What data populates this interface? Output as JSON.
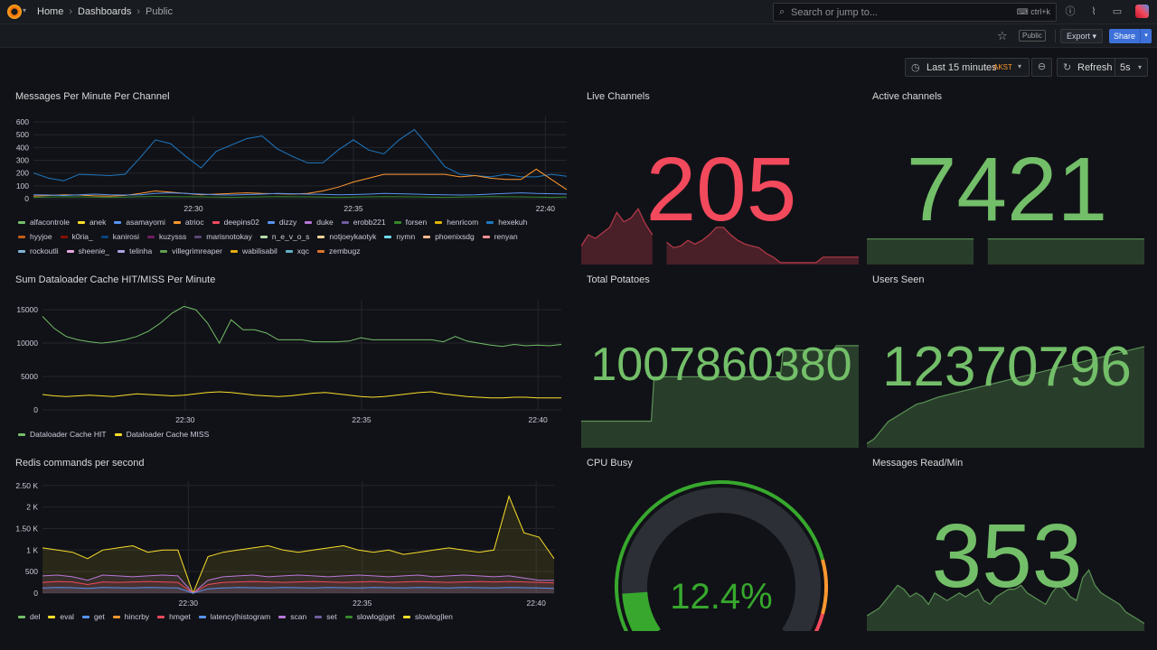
{
  "topbar": {
    "breadcrumbs": [
      "Home",
      "Dashboards",
      "Public"
    ],
    "search_placeholder": "Search or jump to...",
    "search_shortcut": "ctrl+k"
  },
  "subbar": {
    "public_badge": "Public",
    "export_label": "Export",
    "share_label": "Share"
  },
  "controls": {
    "time_range": "Last 15 minutes",
    "timezone": "AKST",
    "refresh_label": "Refresh",
    "refresh_interval": "5s"
  },
  "colors": {
    "green": "#73bf69",
    "red": "#f2495c",
    "orange": "#ff9830",
    "panel_bg": "#111217"
  },
  "panels": {
    "messages": {
      "title": "Messages Per Minute Per Channel",
      "legend": [
        {
          "name": "alfacontrole",
          "color": "#73bf69"
        },
        {
          "name": "anek",
          "color": "#fade2a"
        },
        {
          "name": "asamayomi",
          "color": "#5794f2"
        },
        {
          "name": "atrioc",
          "color": "#ff9830"
        },
        {
          "name": "deepins02",
          "color": "#f2495c"
        },
        {
          "name": "dizzy",
          "color": "#5794f2"
        },
        {
          "name": "duke",
          "color": "#b877d9"
        },
        {
          "name": "erobb221",
          "color": "#705da0"
        },
        {
          "name": "forsen",
          "color": "#37872d"
        },
        {
          "name": "henricom",
          "color": "#e0b400"
        },
        {
          "name": "hexekuh",
          "color": "#1f78c1"
        },
        {
          "name": "hyyjoe",
          "color": "#c15c17"
        },
        {
          "name": "k0ria_",
          "color": "#890f02"
        },
        {
          "name": "kanirosi",
          "color": "#0a437c"
        },
        {
          "name": "kuzysss",
          "color": "#6d1f62"
        },
        {
          "name": "marisnotokay",
          "color": "#584477"
        },
        {
          "name": "n_e_v_o_s",
          "color": "#b7dbab"
        },
        {
          "name": "notjoeykaotyk",
          "color": "#f4d598"
        },
        {
          "name": "nymn",
          "color": "#70dbed"
        },
        {
          "name": "phoenixsdg",
          "color": "#f9ba8f"
        },
        {
          "name": "renyan",
          "color": "#f29191"
        },
        {
          "name": "rockoutli",
          "color": "#82b5d8"
        },
        {
          "name": "sheenie_",
          "color": "#e5a8e2"
        },
        {
          "name": "telinha",
          "color": "#aea2e0"
        },
        {
          "name": "villegrimreaper",
          "color": "#629e51"
        },
        {
          "name": "wabilisabil",
          "color": "#e5ac0e"
        },
        {
          "name": "xqc",
          "color": "#64b0c8"
        },
        {
          "name": "zembugz",
          "color": "#e0752d"
        }
      ],
      "chart_data": {
        "type": "line",
        "y_ticks": [
          "0",
          "100",
          "200",
          "300",
          "400",
          "500",
          "600"
        ],
        "x_ticks": [
          "22:30",
          "22:35",
          "22:40"
        ],
        "ylim": [
          0,
          650
        ],
        "series": [
          {
            "name": "hexekuh",
            "values": [
              200,
              160,
              140,
              190,
              185,
              180,
              190,
              320,
              460,
              430,
              330,
              240,
              370,
              420,
              470,
              490,
              390,
              330,
              280,
              280,
              380,
              460,
              380,
              350,
              460,
              540,
              400,
              250,
              190,
              180,
              170,
              190,
              170,
              170,
              190,
              175
            ]
          },
          {
            "name": "atrioc",
            "values": [
              20,
              25,
              30,
              28,
              22,
              20,
              25,
              40,
              60,
              50,
              40,
              30,
              35,
              40,
              45,
              40,
              38,
              35,
              40,
              60,
              90,
              130,
              160,
              190,
              190,
              190,
              190,
              190,
              170,
              180,
              160,
              150,
              150,
              230,
              150,
              70
            ]
          },
          {
            "name": "asamayomi",
            "values": [
              30,
              28,
              25,
              30,
              35,
              30,
              28,
              30,
              40,
              45,
              40,
              35,
              30,
              28,
              32,
              35,
              40,
              38,
              35,
              33,
              30,
              32,
              35,
              40,
              38,
              35,
              32,
              30,
              28,
              30,
              35,
              40,
              45,
              40,
              38,
              35
            ]
          },
          {
            "name": "forsen",
            "values": [
              10,
              12,
              15,
              14,
              12,
              10,
              12,
              15,
              18,
              16,
              15,
              14,
              12,
              10,
              12,
              14,
              16,
              15,
              14,
              12,
              10,
              12,
              14,
              16,
              15,
              14,
              12,
              10,
              12,
              14,
              16,
              15,
              14,
              12,
              10,
              12
            ]
          }
        ]
      }
    },
    "live": {
      "title": "Live Channels",
      "value": "205",
      "color": "#f2495c",
      "chart_data": {
        "type": "area",
        "values": [
          50,
          80,
          70,
          85,
          100,
          140,
          115,
          125,
          150,
          110,
          80,
          0,
          60,
          45,
          50,
          65,
          55,
          65,
          80,
          100,
          100,
          80,
          65,
          55,
          50,
          45,
          30,
          20,
          5,
          5,
          5,
          5,
          5,
          5,
          20,
          20,
          20,
          20,
          20,
          20
        ]
      }
    },
    "active": {
      "title": "Active channels",
      "value": "7421",
      "color": "#73bf69",
      "chart_data": {
        "type": "area",
        "values": [
          30,
          30,
          30,
          30,
          30,
          30,
          30,
          30,
          30,
          30,
          30,
          30,
          30,
          30,
          30,
          30,
          0,
          30,
          30,
          30,
          30,
          30,
          30,
          30,
          30,
          30,
          30,
          30,
          30,
          30,
          30,
          30,
          30,
          30,
          30,
          30,
          30,
          30,
          30,
          30
        ]
      }
    },
    "dataloader": {
      "title": "Sum Dataloader Cache HIT/MISS Per Minute",
      "legend": [
        {
          "name": "Dataloader Cache HIT",
          "color": "#73bf69"
        },
        {
          "name": "Dataloader Cache MISS",
          "color": "#fade2a"
        }
      ],
      "chart_data": {
        "type": "line",
        "y_ticks": [
          "0",
          "5000",
          "10000",
          "15000"
        ],
        "x_ticks": [
          "22:30",
          "22:35",
          "22:40"
        ],
        "ylim": [
          0,
          16500
        ],
        "series": [
          {
            "name": "Dataloader Cache HIT",
            "values": [
              14000,
              12200,
              11000,
              10500,
              10200,
              10000,
              10200,
              10500,
              11000,
              11800,
              13000,
              14500,
              15500,
              15000,
              13000,
              10000,
              13500,
              12000,
              12000,
              11500,
              10500,
              10500,
              10500,
              10200,
              10200,
              10200,
              10300,
              10800,
              10500,
              10500,
              10500,
              10500,
              10500,
              10500,
              10200,
              11000,
              10300,
              10000,
              9700,
              9500,
              9800,
              9600,
              9700,
              9600,
              9800
            ]
          },
          {
            "name": "Dataloader Cache MISS",
            "values": [
              2300,
              2100,
              2000,
              2100,
              2200,
              2100,
              2000,
              2200,
              2400,
              2300,
              2200,
              2100,
              2200,
              2400,
              2600,
              2700,
              2600,
              2400,
              2200,
              2100,
              2000,
              2100,
              2300,
              2500,
              2600,
              2400,
              2200,
              2000,
              1900,
              2000,
              2200,
              2400,
              2600,
              2700,
              2400,
              2200,
              2000,
              1900,
              1800,
              1800,
              1900,
              1900,
              1800,
              1800,
              1800
            ]
          }
        ]
      }
    },
    "potatoes": {
      "title": "Total Potatoes",
      "value": "1007860380",
      "color": "#73bf69",
      "chart_data": {
        "type": "area",
        "values": [
          30,
          30,
          30,
          30,
          30,
          30,
          30,
          30,
          30,
          30,
          30,
          30,
          30,
          30,
          30,
          30,
          30,
          30,
          30,
          30,
          30,
          30,
          30,
          30,
          30,
          30,
          80,
          80,
          80,
          80,
          80,
          80,
          80,
          80,
          80,
          80,
          80,
          80,
          80,
          80,
          80,
          80,
          80,
          80,
          80,
          80,
          80,
          80,
          80,
          80,
          80,
          80,
          80,
          80,
          80,
          80,
          80,
          80,
          80,
          80,
          80,
          80,
          80,
          80,
          80,
          80,
          80,
          80,
          80,
          80,
          80,
          80,
          110,
          110,
          110,
          110,
          110,
          110,
          110,
          110,
          110,
          110,
          110,
          110,
          110,
          110,
          110,
          110,
          110,
          110,
          110,
          115,
          115,
          115,
          115,
          115,
          115,
          115,
          115,
          115
        ]
      }
    },
    "users": {
      "title": "Users Seen",
      "value": "12370796",
      "color": "#73bf69",
      "chart_data": {
        "type": "area",
        "values": [
          5,
          10,
          20,
          30,
          35,
          40,
          45,
          50,
          52,
          55,
          58,
          60,
          62,
          64,
          66,
          68,
          70,
          72,
          74,
          76,
          78,
          80,
          82,
          84,
          86,
          88,
          90,
          92,
          94,
          96,
          98,
          100,
          102,
          104,
          106,
          108,
          110,
          112,
          114,
          116
        ]
      }
    },
    "redis": {
      "title": "Redis commands per second",
      "legend": [
        {
          "name": "del",
          "color": "#73bf69"
        },
        {
          "name": "eval",
          "color": "#fade2a"
        },
        {
          "name": "get",
          "color": "#5794f2"
        },
        {
          "name": "hincrby",
          "color": "#ff9830"
        },
        {
          "name": "hmget",
          "color": "#f2495c"
        },
        {
          "name": "latency|histogram",
          "color": "#5794f2"
        },
        {
          "name": "scan",
          "color": "#b877d9"
        },
        {
          "name": "set",
          "color": "#705da0"
        },
        {
          "name": "slowlog|get",
          "color": "#37872d"
        },
        {
          "name": "slowlog|len",
          "color": "#fade2a"
        }
      ],
      "chart_data": {
        "type": "area",
        "y_ticks": [
          "0",
          "500",
          "1 K",
          "1.50 K",
          "2 K",
          "2.50 K"
        ],
        "x_ticks": [
          "22:30",
          "22:35",
          "22:40"
        ],
        "ylim": [
          0,
          2600
        ],
        "series": [
          {
            "name": "slowlog|len",
            "values": [
              1050,
              1000,
              950,
              800,
              1000,
              1050,
              1100,
              950,
              1000,
              1000,
              0,
              850,
              950,
              1000,
              1050,
              1100,
              1000,
              950,
              1000,
              1050,
              1100,
              1000,
              950,
              1000,
              900,
              950,
              1000,
              1050,
              1000,
              950,
              1000,
              2250,
              1400,
              1300,
              800
            ]
          },
          {
            "name": "scan",
            "values": [
              400,
              420,
              380,
              300,
              420,
              400,
              380,
              400,
              420,
              400,
              0,
              300,
              380,
              400,
              420,
              380,
              400,
              420,
              400,
              380,
              400,
              420,
              400,
              380,
              400,
              420,
              380,
              400,
              420,
              400,
              380,
              400,
              350,
              300,
              300
            ]
          },
          {
            "name": "hmget",
            "values": [
              250,
              270,
              260,
              200,
              260,
              250,
              260,
              270,
              260,
              250,
              0,
              200,
              250,
              260,
              270,
              260,
              250,
              260,
              270,
              260,
              250,
              260,
              270,
              250,
              260,
              270,
              260,
              250,
              260,
              270,
              260,
              270,
              260,
              250,
              240
            ]
          },
          {
            "name": "get",
            "values": [
              120,
              130,
              125,
              110,
              130,
              125,
              120,
              130,
              125,
              120,
              0,
              100,
              120,
              130,
              125,
              120,
              130,
              125,
              120,
              130,
              125,
              120,
              130,
              125,
              120,
              130,
              125,
              120,
              130,
              125,
              120,
              130,
              125,
              120,
              110
            ]
          }
        ]
      }
    },
    "cpu": {
      "title": "CPU Busy",
      "value": "12.4%",
      "percent": 12.4,
      "color": "#37a82d"
    },
    "msgread": {
      "title": "Messages Read/Min",
      "value": "353",
      "color": "#73bf69",
      "chart_data": {
        "type": "area",
        "values": [
          20,
          25,
          30,
          40,
          50,
          60,
          55,
          45,
          50,
          45,
          35,
          50,
          45,
          40,
          45,
          50,
          45,
          50,
          55,
          40,
          35,
          45,
          50,
          55,
          55,
          60,
          50,
          45,
          40,
          35,
          50,
          60,
          55,
          45,
          40,
          70,
          80,
          60,
          50,
          45,
          40,
          35,
          25,
          20,
          15,
          10
        ]
      }
    }
  }
}
